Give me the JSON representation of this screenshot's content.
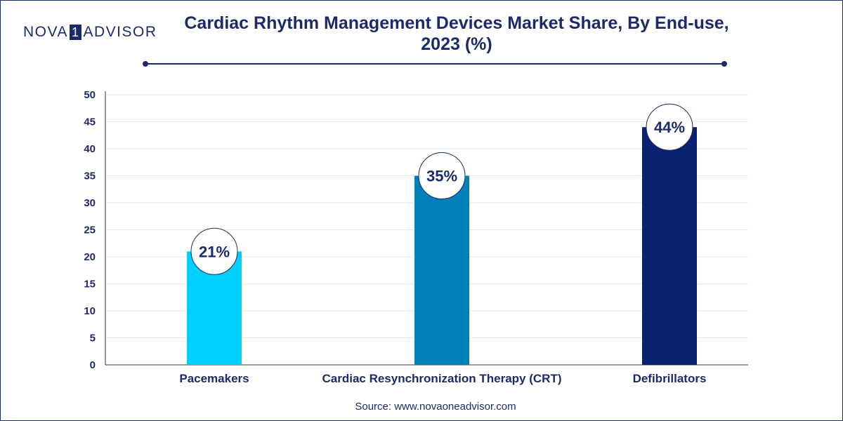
{
  "brand": {
    "logo_left": "NOVA",
    "logo_box": "1",
    "logo_right": "ADVISOR"
  },
  "title_line1": "Cardiac Rhythm Management Devices Market Share, By End-use,",
  "title_line2": "2023 (%)",
  "source": "Source: www.novaoneadvisor.com",
  "colors": {
    "navy": "#1b2a6b",
    "bar_pacemakers": "#00cfff",
    "bar_crt": "#0080b8",
    "bar_defibrillators": "#0a2270"
  },
  "chart_data": {
    "type": "bar",
    "categories": [
      "Pacemakers",
      "Cardiac Resynchronization Therapy (CRT)",
      "Defibrillators"
    ],
    "values": [
      21,
      35,
      44
    ],
    "data_labels": [
      "21%",
      "35%",
      "44%"
    ],
    "title": "Cardiac Rhythm Management Devices Market Share, By End-use, 2023 (%)",
    "xlabel": "",
    "ylabel": "",
    "ylim": [
      0,
      50
    ],
    "yticks": [
      0,
      5,
      10,
      15,
      20,
      25,
      30,
      35,
      40,
      45,
      50
    ],
    "grid": true,
    "legend": "none"
  }
}
